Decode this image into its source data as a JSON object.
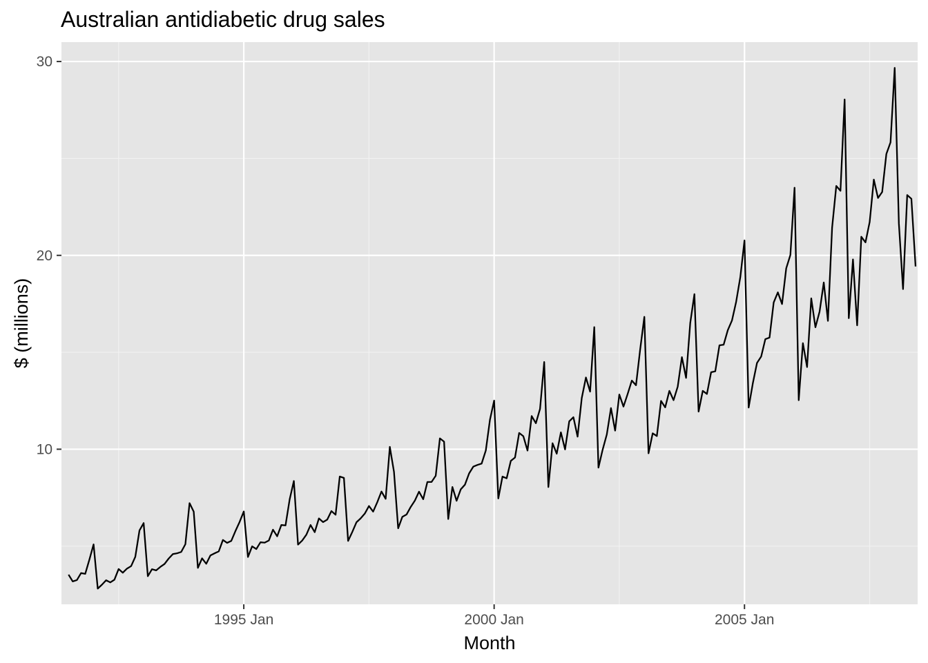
{
  "chart_data": {
    "type": "line",
    "title": "Australian antidiabetic drug sales",
    "xlabel": "Month",
    "ylabel": "$ (millions)",
    "x_start": "1991-07",
    "x_frequency": "monthly",
    "x_ticks": [
      "1995 Jan",
      "2000 Jan",
      "2005 Jan"
    ],
    "y_ticks": [
      10,
      20,
      30
    ],
    "xlim": [
      "1991-01",
      "2008-12"
    ],
    "ylim": [
      2.0,
      31.0
    ],
    "grid": true,
    "legend": "none",
    "series": [
      {
        "values": [
          3.53,
          3.18,
          3.25,
          3.61,
          3.57,
          4.31,
          5.09,
          2.81,
          3.01,
          3.24,
          3.13,
          3.27,
          3.82,
          3.63,
          3.84,
          3.97,
          4.45,
          5.81,
          6.19,
          3.45,
          3.81,
          3.75,
          3.93,
          4.08,
          4.36,
          4.59,
          4.63,
          4.7,
          5.1,
          7.22,
          6.78,
          3.88,
          4.37,
          4.09,
          4.52,
          4.63,
          4.73,
          5.32,
          5.17,
          5.27,
          5.78,
          6.25,
          6.79,
          4.44,
          4.99,
          4.85,
          5.2,
          5.18,
          5.29,
          5.85,
          5.51,
          6.09,
          6.07,
          7.42,
          8.36,
          5.08,
          5.29,
          5.59,
          6.09,
          5.72,
          6.43,
          6.24,
          6.37,
          6.81,
          6.62,
          8.59,
          8.52,
          5.27,
          5.73,
          6.23,
          6.43,
          6.68,
          7.07,
          6.78,
          7.27,
          7.82,
          7.44,
          10.12,
          8.83,
          5.92,
          6.51,
          6.63,
          7.02,
          7.35,
          7.81,
          7.42,
          8.31,
          8.31,
          8.63,
          10.56,
          10.39,
          6.4,
          8.05,
          7.34,
          7.93,
          8.17,
          8.75,
          9.1,
          9.19,
          9.26,
          9.93,
          11.52,
          12.51,
          7.46,
          8.59,
          8.5,
          9.4,
          9.57,
          10.84,
          10.67,
          9.93,
          11.71,
          11.34,
          12.08,
          14.5,
          8.05,
          10.31,
          9.77,
          10.87,
          9.99,
          11.44,
          11.65,
          10.65,
          12.64,
          13.7,
          12.97,
          16.3,
          9.05,
          9.97,
          10.76,
          12.12,
          10.96,
          12.82,
          12.2,
          12.85,
          13.54,
          13.3,
          15.15,
          16.83,
          9.79,
          10.82,
          10.68,
          12.49,
          12.16,
          13.01,
          12.53,
          13.23,
          14.75,
          13.68,
          16.51,
          18.0,
          11.94,
          13.01,
          12.85,
          13.97,
          14.02,
          15.36,
          15.39,
          16.14,
          16.64,
          17.6,
          18.88,
          20.77,
          12.15,
          13.4,
          14.45,
          14.78,
          15.68,
          15.76,
          17.57,
          18.09,
          17.49,
          19.33,
          20.02,
          23.49,
          12.53,
          15.47,
          14.24,
          17.78,
          16.29,
          17.1,
          18.6,
          16.62,
          21.43,
          23.58,
          23.33,
          28.04,
          16.76,
          19.79,
          16.39,
          20.96,
          20.67,
          21.72,
          23.91,
          22.96,
          23.27,
          25.23,
          25.83,
          29.67,
          21.65,
          18.26,
          23.11,
          22.92,
          19.43
        ]
      }
    ]
  },
  "colors": {
    "panel_background": "#e5e5e5",
    "grid_major": "#ffffff",
    "grid_minor": "#f2f2f2",
    "line": "#000000",
    "tick_text": "#4d4d4d"
  }
}
